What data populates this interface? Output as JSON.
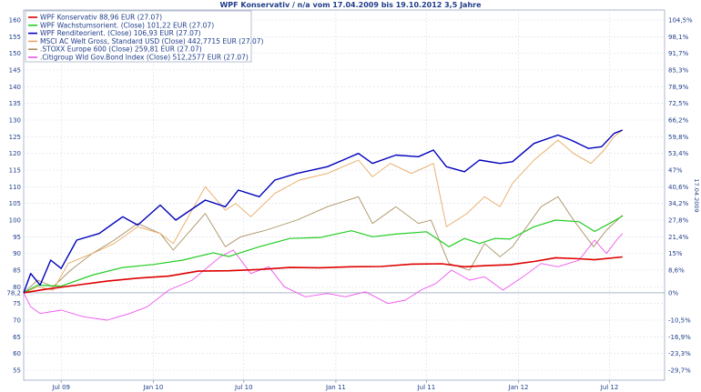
{
  "chart_data": {
    "type": "line",
    "title": "WPF Konservativ / n/a vom 17.04.2009 bis 19.10.2012 3,5 Jahre",
    "side_label": "17.04.2009",
    "baseline_value": "78,2",
    "y_left_ticks": [
      160,
      155,
      150,
      145,
      140,
      135,
      130,
      125,
      120,
      115,
      110,
      105,
      100,
      95,
      90,
      85,
      80,
      75,
      70,
      65,
      60,
      55
    ],
    "y_right_ticks": [
      {
        "value": 160,
        "label": "104,5%"
      },
      {
        "value": 155,
        "label": "98,1%"
      },
      {
        "value": 150,
        "label": "91,7%"
      },
      {
        "value": 145,
        "label": "85,3%"
      },
      {
        "value": 140,
        "label": "78,9%"
      },
      {
        "value": 135,
        "label": "72,5%"
      },
      {
        "value": 130,
        "label": "66,2%"
      },
      {
        "value": 125,
        "label": "59,8%"
      },
      {
        "value": 120,
        "label": "53,4%"
      },
      {
        "value": 115,
        "label": "47%"
      },
      {
        "value": 110,
        "label": "40,6%"
      },
      {
        "value": 105,
        "label": "34,2%"
      },
      {
        "value": 100,
        "label": "27,8%"
      },
      {
        "value": 95,
        "label": "21,4%"
      },
      {
        "value": 90,
        "label": "15%"
      },
      {
        "value": 85,
        "label": "8,6%"
      },
      {
        "value": 78.2,
        "label": "0%"
      },
      {
        "value": 70,
        "label": "-10,5%"
      },
      {
        "value": 65,
        "label": "-16,9%"
      },
      {
        "value": 60,
        "label": "-23,3%"
      },
      {
        "value": 55,
        "label": "-29,7%"
      }
    ],
    "x_range": [
      "2009-04-17",
      "2012-10-19"
    ],
    "y_range": [
      52,
      163
    ],
    "x_ticks": [
      {
        "date": "2009-07-01",
        "label": "Jul 09"
      },
      {
        "date": "2010-01-01",
        "label": "Jan 10"
      },
      {
        "date": "2010-07-01",
        "label": "Jul 10"
      },
      {
        "date": "2011-01-01",
        "label": "Jan 11"
      },
      {
        "date": "2011-07-01",
        "label": "Jul 11"
      },
      {
        "date": "2012-01-01",
        "label": "Jan 12"
      },
      {
        "date": "2012-07-01",
        "label": "Jul 12"
      }
    ],
    "grid": true,
    "legend_position": "top-left",
    "series": [
      {
        "name": "WPF Konservativ 88,96 EUR (27.07)",
        "color": "#dd0000",
        "width": 1.6,
        "points": [
          [
            "2009-04-17",
            78.2
          ],
          [
            "2009-06-01",
            79.3
          ],
          [
            "2009-08-01",
            80.5
          ],
          [
            "2009-10-01",
            81.7
          ],
          [
            "2009-12-01",
            82.6
          ],
          [
            "2010-02-01",
            83.2
          ],
          [
            "2010-04-01",
            84.7
          ],
          [
            "2010-06-01",
            84.8
          ],
          [
            "2010-08-01",
            85.2
          ],
          [
            "2010-10-01",
            85.8
          ],
          [
            "2010-12-01",
            85.7
          ],
          [
            "2011-02-01",
            86.0
          ],
          [
            "2011-04-01",
            86.1
          ],
          [
            "2011-06-01",
            86.8
          ],
          [
            "2011-08-01",
            86.9
          ],
          [
            "2011-09-15",
            86.0
          ],
          [
            "2011-11-01",
            86.4
          ],
          [
            "2011-12-15",
            86.6
          ],
          [
            "2012-02-01",
            87.6
          ],
          [
            "2012-03-15",
            88.7
          ],
          [
            "2012-05-01",
            88.4
          ],
          [
            "2012-06-01",
            88.1
          ],
          [
            "2012-07-27",
            88.96
          ]
        ]
      },
      {
        "name": "WPF Wachstumsorient. (Close) 101,22 EUR (27.07)",
        "color": "#22cc22",
        "width": 1.2,
        "points": [
          [
            "2009-04-17",
            78.2
          ],
          [
            "2009-05-15",
            80.5
          ],
          [
            "2009-07-01",
            80.2
          ],
          [
            "2009-09-01",
            83.5
          ],
          [
            "2009-11-01",
            85.8
          ],
          [
            "2010-01-01",
            86.7
          ],
          [
            "2010-03-01",
            88.0
          ],
          [
            "2010-05-01",
            90.2
          ],
          [
            "2010-06-01",
            89.1
          ],
          [
            "2010-08-01",
            92.0
          ],
          [
            "2010-10-01",
            94.5
          ],
          [
            "2010-12-01",
            94.8
          ],
          [
            "2011-02-01",
            96.8
          ],
          [
            "2011-03-15",
            95.0
          ],
          [
            "2011-05-01",
            95.8
          ],
          [
            "2011-07-01",
            96.5
          ],
          [
            "2011-08-15",
            92.0
          ],
          [
            "2011-09-15",
            94.5
          ],
          [
            "2011-10-15",
            93.0
          ],
          [
            "2011-11-15",
            94.5
          ],
          [
            "2011-12-15",
            94.3
          ],
          [
            "2012-02-01",
            98.0
          ],
          [
            "2012-03-15",
            100.0
          ],
          [
            "2012-05-01",
            99.5
          ],
          [
            "2012-06-01",
            96.6
          ],
          [
            "2012-07-01",
            99.0
          ],
          [
            "2012-07-27",
            101.22
          ]
        ]
      },
      {
        "name": "WPF Renditeorient. (Close) 106,93 EUR (27.07)",
        "color": "#0000bb",
        "width": 1.4,
        "points": [
          [
            "2009-04-17",
            78.2
          ],
          [
            "2009-05-01",
            84.0
          ],
          [
            "2009-05-20",
            80.5
          ],
          [
            "2009-06-10",
            88.0
          ],
          [
            "2009-07-01",
            85.5
          ],
          [
            "2009-08-01",
            94.0
          ],
          [
            "2009-09-15",
            96.0
          ],
          [
            "2009-11-01",
            101.0
          ],
          [
            "2009-12-01",
            98.5
          ],
          [
            "2010-01-15",
            104.5
          ],
          [
            "2010-02-15",
            100.0
          ],
          [
            "2010-04-15",
            106.0
          ],
          [
            "2010-05-25",
            104.0
          ],
          [
            "2010-06-20",
            109.0
          ],
          [
            "2010-08-01",
            107.0
          ],
          [
            "2010-09-01",
            112.0
          ],
          [
            "2010-10-15",
            114.0
          ],
          [
            "2010-12-15",
            116.0
          ],
          [
            "2011-02-15",
            120.0
          ],
          [
            "2011-03-15",
            117.0
          ],
          [
            "2011-05-01",
            119.5
          ],
          [
            "2011-06-15",
            119.0
          ],
          [
            "2011-07-15",
            121.0
          ],
          [
            "2011-08-10",
            116.0
          ],
          [
            "2011-09-15",
            114.5
          ],
          [
            "2011-10-15",
            118.0
          ],
          [
            "2011-11-25",
            117.0
          ],
          [
            "2011-12-20",
            117.5
          ],
          [
            "2012-02-01",
            123.0
          ],
          [
            "2012-03-20",
            125.5
          ],
          [
            "2012-04-15",
            124.0
          ],
          [
            "2012-05-20",
            121.5
          ],
          [
            "2012-06-15",
            122.0
          ],
          [
            "2012-07-10",
            126.0
          ],
          [
            "2012-07-27",
            127.0
          ]
        ]
      },
      {
        "name": "MSCI AC Welt Gross, Standard USD (Close) 442,7715 EUR (27.07)",
        "color": "#e8a860",
        "width": 0.9,
        "points": [
          [
            "2009-04-17",
            78.2
          ],
          [
            "2009-05-15",
            80.0
          ],
          [
            "2009-06-15",
            79.0
          ],
          [
            "2009-07-15",
            87.0
          ],
          [
            "2009-09-01",
            90.0
          ],
          [
            "2009-10-15",
            93.0
          ],
          [
            "2009-12-01",
            98.0
          ],
          [
            "2010-01-15",
            96.0
          ],
          [
            "2010-02-10",
            93.0
          ],
          [
            "2010-04-15",
            110.0
          ],
          [
            "2010-05-25",
            103.0
          ],
          [
            "2010-06-15",
            105.0
          ],
          [
            "2010-07-15",
            101.0
          ],
          [
            "2010-09-01",
            108.0
          ],
          [
            "2010-10-20",
            112.0
          ],
          [
            "2010-12-15",
            114.0
          ],
          [
            "2011-02-15",
            118.0
          ],
          [
            "2011-03-15",
            113.0
          ],
          [
            "2011-04-20",
            117.0
          ],
          [
            "2011-06-01",
            114.0
          ],
          [
            "2011-07-15",
            117.0
          ],
          [
            "2011-08-10",
            98.0
          ],
          [
            "2011-09-20",
            102.0
          ],
          [
            "2011-10-25",
            107.0
          ],
          [
            "2011-11-25",
            104.0
          ],
          [
            "2011-12-20",
            111.0
          ],
          [
            "2012-02-01",
            118.0
          ],
          [
            "2012-03-20",
            124.0
          ],
          [
            "2012-04-20",
            120.0
          ],
          [
            "2012-05-25",
            117.0
          ],
          [
            "2012-06-20",
            121.0
          ],
          [
            "2012-07-10",
            125.0
          ],
          [
            "2012-07-27",
            127.0
          ]
        ]
      },
      {
        "name": ".STOXX Europe 600 (Close) 259,81 EUR (27.07)",
        "color": "#a89060",
        "width": 0.9,
        "points": [
          [
            "2009-04-17",
            78.2
          ],
          [
            "2009-05-15",
            82.0
          ],
          [
            "2009-06-15",
            80.0
          ],
          [
            "2009-07-20",
            85.0
          ],
          [
            "2009-09-01",
            90.0
          ],
          [
            "2009-10-15",
            94.0
          ],
          [
            "2009-12-01",
            99.0
          ],
          [
            "2010-01-15",
            96.0
          ],
          [
            "2010-02-10",
            91.0
          ],
          [
            "2010-04-15",
            102.0
          ],
          [
            "2010-05-25",
            92.0
          ],
          [
            "2010-06-25",
            95.0
          ],
          [
            "2010-08-15",
            97.0
          ],
          [
            "2010-10-15",
            100.0
          ],
          [
            "2010-12-15",
            104.0
          ],
          [
            "2011-02-15",
            107.0
          ],
          [
            "2011-03-15",
            99.0
          ],
          [
            "2011-05-01",
            104.0
          ],
          [
            "2011-06-15",
            99.0
          ],
          [
            "2011-07-10",
            100.0
          ],
          [
            "2011-08-15",
            87.0
          ],
          [
            "2011-09-25",
            85.0
          ],
          [
            "2011-10-25",
            93.0
          ],
          [
            "2011-11-25",
            89.0
          ],
          [
            "2011-12-20",
            92.0
          ],
          [
            "2012-02-15",
            104.0
          ],
          [
            "2012-03-20",
            107.0
          ],
          [
            "2012-04-20",
            100.0
          ],
          [
            "2012-05-30",
            92.0
          ],
          [
            "2012-06-25",
            97.0
          ],
          [
            "2012-07-27",
            101.5
          ]
        ]
      },
      {
        "name": ".Citigroup Wld Gov.Bond Index (Close) 512,2577 EUR (27.07)",
        "color": "#ee55ee",
        "width": 0.9,
        "points": [
          [
            "2009-04-17",
            78.2
          ],
          [
            "2009-05-01",
            74.0
          ],
          [
            "2009-05-20",
            72.0
          ],
          [
            "2009-07-01",
            73.0
          ],
          [
            "2009-08-15",
            71.0
          ],
          [
            "2009-10-01",
            70.0
          ],
          [
            "2009-11-15",
            72.0
          ],
          [
            "2009-12-20",
            74.0
          ],
          [
            "2010-02-01",
            79.0
          ],
          [
            "2010-03-20",
            82.0
          ],
          [
            "2010-05-15",
            89.0
          ],
          [
            "2010-06-10",
            91.0
          ],
          [
            "2010-07-15",
            84.0
          ],
          [
            "2010-08-20",
            86.0
          ],
          [
            "2010-09-20",
            80.0
          ],
          [
            "2010-11-01",
            77.0
          ],
          [
            "2010-12-15",
            78.0
          ],
          [
            "2011-01-20",
            77.0
          ],
          [
            "2011-03-01",
            78.5
          ],
          [
            "2011-04-15",
            75.0
          ],
          [
            "2011-05-20",
            76.0
          ],
          [
            "2011-06-20",
            79.0
          ],
          [
            "2011-07-20",
            81.0
          ],
          [
            "2011-08-20",
            85.0
          ],
          [
            "2011-09-25",
            82.0
          ],
          [
            "2011-10-25",
            83.0
          ],
          [
            "2011-12-01",
            79.0
          ],
          [
            "2012-01-10",
            83.0
          ],
          [
            "2012-02-15",
            87.0
          ],
          [
            "2012-03-20",
            86.0
          ],
          [
            "2012-05-01",
            88.0
          ],
          [
            "2012-06-01",
            94.0
          ],
          [
            "2012-06-25",
            90.0
          ],
          [
            "2012-07-15",
            94.0
          ],
          [
            "2012-07-27",
            96.0
          ]
        ]
      }
    ]
  }
}
